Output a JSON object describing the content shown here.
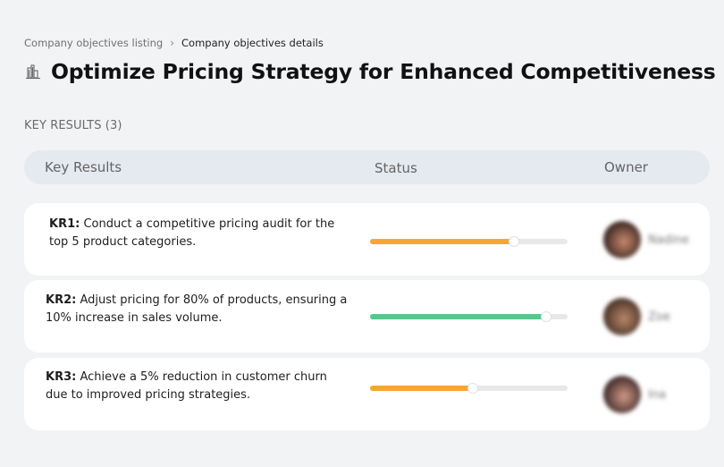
{
  "breadcrumb": {
    "parent": "Company objectives listing",
    "separator": "›",
    "current": "Company objectives details"
  },
  "page": {
    "icon": "building-chart-icon",
    "title": "Optimize Pricing Strategy for Enhanced Competitiveness"
  },
  "section": {
    "label": "KEY RESULTS (3)"
  },
  "table": {
    "columns": [
      "Key Results",
      "Status",
      "Owner"
    ],
    "rows": [
      {
        "code": "KR1:",
        "text": " Conduct a competitive pricing audit for the top 5 product categories.",
        "progress": 73,
        "color": "#f7a634",
        "owner": "Nadine",
        "avatar_colors": [
          "#3a2622",
          "#c98a6c"
        ]
      },
      {
        "code": "KR2:",
        "text": " Adjust pricing for 80% of products, ensuring a 10% increase in sales volume.",
        "progress": 89,
        "color": "#5cc58b",
        "owner": "Zoe",
        "avatar_colors": [
          "#4a3328",
          "#b9876a"
        ]
      },
      {
        "code": "KR3:",
        "text": " Achieve a 5% reduction in customer churn due to improved pricing strategies.",
        "progress": 52,
        "color": "#f7a634",
        "owner": "Ina",
        "avatar_colors": [
          "#3e2a2a",
          "#d29a86"
        ]
      }
    ]
  }
}
